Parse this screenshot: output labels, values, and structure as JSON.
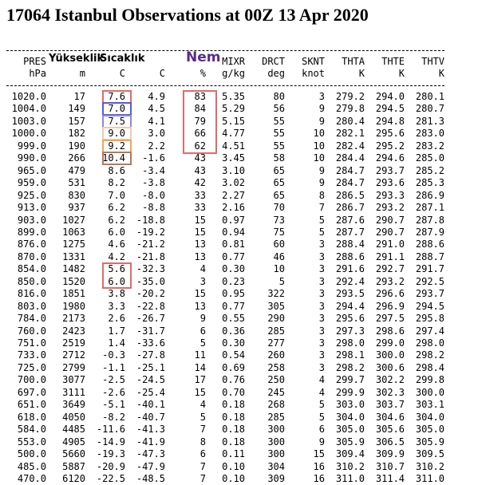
{
  "title": "17064 Istanbul Observations at 00Z 13 Apr 2020",
  "columns": [
    {
      "label": "PRES",
      "unit": "hPa"
    },
    {
      "label": "Yükseklik",
      "unit": "m"
    },
    {
      "label": "Sıcaklık",
      "unit": "C"
    },
    {
      "unit": "C"
    },
    {
      "label": "Nem",
      "unit": "%"
    },
    {
      "label": "MIXR",
      "unit": "g/kg"
    },
    {
      "label": "DRCT",
      "unit": "deg"
    },
    {
      "label": "SKNT",
      "unit": "knot"
    },
    {
      "label": "THTA",
      "unit": "K"
    },
    {
      "label": "THTE",
      "unit": "K"
    },
    {
      "label": "THTV",
      "unit": "K"
    }
  ],
  "rows": [
    [
      "1020.0",
      "17",
      "7.6",
      "4.9",
      "83",
      "5.35",
      "80",
      "3",
      "279.2",
      "294.0",
      "280.1"
    ],
    [
      "1004.0",
      "149",
      "7.0",
      "4.5",
      "84",
      "5.29",
      "56",
      "9",
      "279.8",
      "294.5",
      "280.7"
    ],
    [
      "1003.0",
      "157",
      "7.5",
      "4.1",
      "79",
      "5.15",
      "55",
      "9",
      "280.4",
      "294.8",
      "281.3"
    ],
    [
      "1000.0",
      "182",
      "9.0",
      "3.0",
      "66",
      "4.77",
      "55",
      "10",
      "282.1",
      "295.6",
      "283.0"
    ],
    [
      "999.0",
      "190",
      "9.2",
      "2.2",
      "62",
      "4.51",
      "55",
      "10",
      "282.4",
      "295.2",
      "283.2"
    ],
    [
      "990.0",
      "266",
      "10.4",
      "-1.6",
      "43",
      "3.45",
      "58",
      "10",
      "284.4",
      "294.6",
      "285.0"
    ],
    [
      "965.0",
      "479",
      "8.6",
      "-3.4",
      "43",
      "3.10",
      "65",
      "9",
      "284.7",
      "293.7",
      "285.2"
    ],
    [
      "959.0",
      "531",
      "8.2",
      "-3.8",
      "42",
      "3.02",
      "65",
      "9",
      "284.7",
      "293.6",
      "285.3"
    ],
    [
      "925.0",
      "830",
      "7.0",
      "-8.0",
      "33",
      "2.27",
      "65",
      "8",
      "286.5",
      "293.3",
      "286.9"
    ],
    [
      "913.0",
      "937",
      "6.2",
      "-8.8",
      "33",
      "2.16",
      "70",
      "7",
      "286.7",
      "293.2",
      "287.1"
    ],
    [
      "903.0",
      "1027",
      "6.2",
      "-18.8",
      "15",
      "0.97",
      "73",
      "5",
      "287.6",
      "290.7",
      "287.8"
    ],
    [
      "899.0",
      "1063",
      "6.0",
      "-19.2",
      "15",
      "0.94",
      "75",
      "5",
      "287.7",
      "290.7",
      "287.9"
    ],
    [
      "876.0",
      "1275",
      "4.6",
      "-21.2",
      "13",
      "0.81",
      "60",
      "3",
      "288.4",
      "291.0",
      "288.6"
    ],
    [
      "870.0",
      "1331",
      "4.2",
      "-21.8",
      "13",
      "0.77",
      "46",
      "3",
      "288.6",
      "291.1",
      "288.7"
    ],
    [
      "854.0",
      "1482",
      "5.6",
      "-32.3",
      "4",
      "0.30",
      "10",
      "3",
      "291.6",
      "292.7",
      "291.7"
    ],
    [
      "850.0",
      "1520",
      "6.0",
      "-35.0",
      "3",
      "0.23",
      "5",
      "3",
      "292.4",
      "293.2",
      "292.5"
    ],
    [
      "816.0",
      "1851",
      "3.8",
      "-20.2",
      "15",
      "0.95",
      "322",
      "3",
      "293.5",
      "296.6",
      "293.7"
    ],
    [
      "803.0",
      "1980",
      "3.3",
      "-22.8",
      "13",
      "0.77",
      "305",
      "3",
      "294.4",
      "296.9",
      "294.5"
    ],
    [
      "784.0",
      "2173",
      "2.6",
      "-26.7",
      "9",
      "0.55",
      "290",
      "3",
      "295.6",
      "297.5",
      "295.8"
    ],
    [
      "760.0",
      "2423",
      "1.7",
      "-31.7",
      "6",
      "0.36",
      "285",
      "3",
      "297.3",
      "298.6",
      "297.4"
    ],
    [
      "751.0",
      "2519",
      "1.4",
      "-33.6",
      "5",
      "0.30",
      "277",
      "3",
      "298.0",
      "299.0",
      "298.0"
    ],
    [
      "733.0",
      "2712",
      "-0.3",
      "-27.8",
      "11",
      "0.54",
      "260",
      "3",
      "298.1",
      "300.0",
      "298.2"
    ],
    [
      "725.0",
      "2799",
      "-1.1",
      "-25.1",
      "14",
      "0.69",
      "258",
      "3",
      "298.2",
      "300.6",
      "298.4"
    ],
    [
      "700.0",
      "3077",
      "-2.5",
      "-24.5",
      "17",
      "0.76",
      "250",
      "4",
      "299.7",
      "302.2",
      "299.8"
    ],
    [
      "697.0",
      "3111",
      "-2.6",
      "-25.4",
      "15",
      "0.70",
      "245",
      "4",
      "299.9",
      "302.3",
      "300.0"
    ],
    [
      "651.0",
      "3649",
      "-5.1",
      "-40.1",
      "4",
      "0.18",
      "268",
      "5",
      "303.0",
      "303.7",
      "303.1"
    ],
    [
      "618.0",
      "4050",
      "-8.2",
      "-40.7",
      "5",
      "0.18",
      "285",
      "5",
      "304.0",
      "304.6",
      "304.0"
    ],
    [
      "584.0",
      "4485",
      "-11.6",
      "-41.3",
      "7",
      "0.18",
      "300",
      "6",
      "305.0",
      "305.6",
      "305.0"
    ],
    [
      "553.0",
      "4905",
      "-14.9",
      "-41.9",
      "8",
      "0.18",
      "300",
      "9",
      "305.9",
      "306.5",
      "305.9"
    ],
    [
      "500.0",
      "5660",
      "-19.3",
      "-47.3",
      "6",
      "0.11",
      "300",
      "15",
      "309.4",
      "309.9",
      "309.5"
    ],
    [
      "485.0",
      "5887",
      "-20.9",
      "-47.9",
      "7",
      "0.10",
      "304",
      "16",
      "310.2",
      "310.7",
      "310.2"
    ],
    [
      "470.0",
      "6120",
      "-22.5",
      "-48.5",
      "7",
      "0.10",
      "309",
      "16",
      "311.0",
      "311.4",
      "311.0"
    ]
  ]
}
